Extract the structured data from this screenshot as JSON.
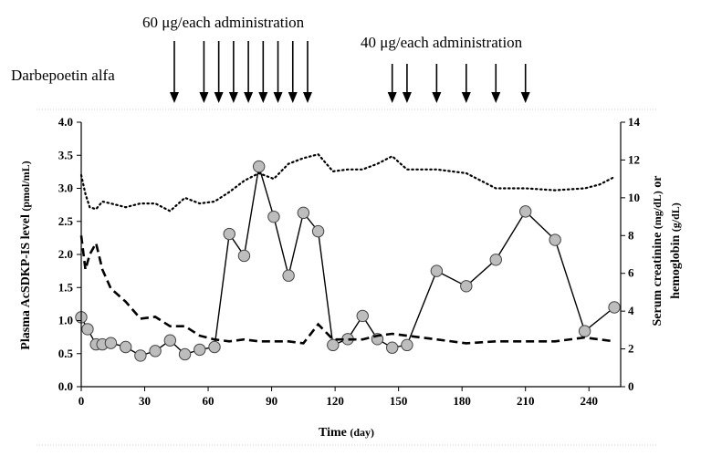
{
  "chart_data": {
    "type": "line",
    "annotations": {
      "drug_label": "Darbepoetin alfa",
      "dose1_label": "60 μg/each administration",
      "dose1_days": [
        44,
        58,
        65,
        72,
        79,
        86,
        93,
        100,
        107
      ],
      "dose2_label": "40 μg/each administration",
      "dose2_days": [
        147,
        154,
        168,
        182,
        196,
        210
      ]
    },
    "xlabel": "Time",
    "xlabel_unit": "(day)",
    "ylabel_left": "Plasma AcSDKP-IS level",
    "ylabel_left_unit": "(pmol/mL)",
    "ylabel_right_line1": "Serum creatinine",
    "ylabel_right_line1_unit": "(mg/dL)",
    "ylabel_right_line1_suffix": "or",
    "ylabel_right_line2": "hemoglobin",
    "ylabel_right_line2_unit": "(g/dL)",
    "xlim": [
      0,
      255
    ],
    "ylim_left": [
      0,
      4.0
    ],
    "ylim_right": [
      0,
      14
    ],
    "xticks": [
      "0",
      "30",
      "60",
      "90",
      "120",
      "150",
      "180",
      "210",
      "240"
    ],
    "yticks_left": [
      "0.0",
      "0.5",
      "1.0",
      "1.5",
      "2.0",
      "2.5",
      "3.0",
      "3.5",
      "4.0"
    ],
    "yticks_right": [
      "0",
      "2",
      "4",
      "6",
      "8",
      "10",
      "12",
      "14"
    ],
    "series": [
      {
        "style": "solid-circles",
        "axis": "left",
        "x": [
          0,
          3,
          7,
          10,
          14,
          21,
          28,
          35,
          42,
          49,
          56,
          63,
          70,
          77,
          84,
          91,
          98,
          105,
          112,
          119,
          126,
          133,
          140,
          147,
          154,
          168,
          182,
          196,
          210,
          224,
          238,
          252
        ],
        "y": [
          1.05,
          0.87,
          0.64,
          0.64,
          0.66,
          0.6,
          0.47,
          0.54,
          0.7,
          0.49,
          0.56,
          0.6,
          2.31,
          1.98,
          3.33,
          2.57,
          1.68,
          2.63,
          2.35,
          0.63,
          0.72,
          1.07,
          0.72,
          0.59,
          0.63,
          1.75,
          1.52,
          1.92,
          2.65,
          2.22,
          0.84,
          1.2
        ]
      },
      {
        "style": "dotted",
        "axis": "right",
        "x": [
          0,
          2,
          4,
          7,
          10,
          14,
          21,
          28,
          35,
          42,
          49,
          56,
          63,
          70,
          77,
          84,
          91,
          98,
          105,
          112,
          119,
          126,
          133,
          140,
          147,
          154,
          168,
          182,
          196,
          210,
          224,
          238,
          245,
          252
        ],
        "y": [
          11.2,
          10.2,
          9.5,
          9.4,
          9.8,
          9.7,
          9.5,
          9.7,
          9.7,
          9.3,
          10.0,
          9.7,
          9.8,
          10.3,
          10.9,
          11.3,
          11.0,
          11.8,
          12.1,
          12.3,
          11.4,
          11.5,
          11.5,
          11.8,
          12.2,
          11.5,
          11.5,
          11.3,
          10.5,
          10.5,
          10.4,
          10.5,
          10.7,
          11.1
        ]
      },
      {
        "style": "dashed",
        "axis": "right",
        "x": [
          0,
          2,
          4,
          7,
          10,
          14,
          21,
          28,
          35,
          42,
          49,
          56,
          63,
          70,
          77,
          84,
          91,
          98,
          105,
          112,
          119,
          126,
          133,
          140,
          147,
          154,
          168,
          182,
          196,
          210,
          224,
          238,
          252
        ],
        "y": [
          8.0,
          6.2,
          7.0,
          7.6,
          6.2,
          5.2,
          4.5,
          3.6,
          3.7,
          3.2,
          3.2,
          2.7,
          2.5,
          2.4,
          2.5,
          2.4,
          2.4,
          2.4,
          2.3,
          3.3,
          2.5,
          2.5,
          2.5,
          2.7,
          2.8,
          2.7,
          2.5,
          2.3,
          2.4,
          2.4,
          2.4,
          2.6,
          2.4
        ]
      }
    ]
  }
}
